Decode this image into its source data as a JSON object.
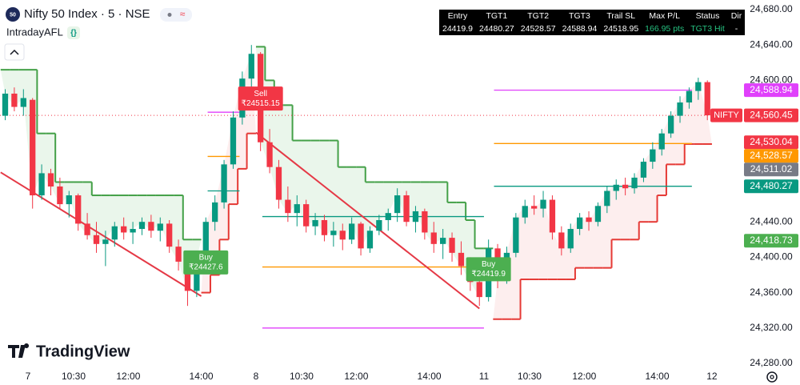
{
  "header": {
    "symbol_badge": "50",
    "title": "Nifty 50 Index · 5 · NSE",
    "indicator": "IntradayAFL"
  },
  "logo": "TradingView",
  "table": {
    "headers": [
      "Entry",
      "TGT1",
      "TGT2",
      "TGT3",
      "Trail SL",
      "Max P/L",
      "Status",
      "Dir"
    ],
    "row": [
      "24419.9",
      "24480.27",
      "24528.57",
      "24588.94",
      "24518.95",
      "166.95 pts",
      "TGT3 Hit",
      "-"
    ]
  },
  "chart_data": {
    "type": "candlestick",
    "up_color": "#089981",
    "down_color": "#f23645",
    "x": [
      -3,
      -2,
      -1,
      0,
      1,
      2,
      3,
      4,
      5,
      6,
      7,
      8,
      9,
      10,
      11,
      12,
      13,
      14,
      15,
      16,
      17,
      18,
      19,
      20,
      21,
      22,
      23,
      24,
      25,
      26,
      27,
      28,
      29,
      30,
      31,
      32,
      33,
      34,
      35,
      36,
      37,
      38,
      39,
      40,
      41,
      42,
      43,
      44,
      45,
      46,
      47,
      48,
      49,
      50,
      51,
      52,
      53,
      54,
      55,
      56,
      57,
      58,
      59,
      60,
      61,
      62,
      63,
      64,
      65,
      66,
      67,
      68,
      69,
      70,
      71,
      72,
      73,
      74
    ],
    "ohlc": [
      [
        24560,
        24590,
        24555,
        24585
      ],
      [
        24585,
        24592,
        24565,
        24570
      ],
      [
        24570,
        24590,
        24560,
        24580
      ],
      [
        24578,
        24580,
        24455,
        24470
      ],
      [
        24470,
        24505,
        24465,
        24495
      ],
      [
        24495,
        24500,
        24470,
        24480
      ],
      [
        24480,
        24490,
        24455,
        24460
      ],
      [
        24460,
        24475,
        24445,
        24470
      ],
      [
        24470,
        24472,
        24430,
        24438
      ],
      [
        24438,
        24450,
        24420,
        24425
      ],
      [
        24425,
        24440,
        24405,
        24415
      ],
      [
        24415,
        24430,
        24390,
        24420
      ],
      [
        24420,
        24440,
        24412,
        24435
      ],
      [
        24435,
        24445,
        24420,
        24428
      ],
      [
        24428,
        24440,
        24415,
        24432
      ],
      [
        24432,
        24445,
        24425,
        24440
      ],
      [
        24440,
        24448,
        24422,
        24430
      ],
      [
        24430,
        24445,
        24418,
        24438
      ],
      [
        24438,
        24442,
        24405,
        24412
      ],
      [
        24412,
        24420,
        24385,
        24395
      ],
      [
        24395,
        24400,
        24345,
        24362
      ],
      [
        24362,
        24405,
        24355,
        24398
      ],
      [
        24398,
        24445,
        24392,
        24440
      ],
      [
        24440,
        24470,
        24430,
        24462
      ],
      [
        24462,
        24510,
        24455,
        24505
      ],
      [
        24505,
        24565,
        24500,
        24558
      ],
      [
        24558,
        24610,
        24550,
        24602
      ],
      [
        24602,
        24640,
        24590,
        24630
      ],
      [
        24630,
        24632,
        24520,
        24530
      ],
      [
        24530,
        24545,
        24495,
        24502
      ],
      [
        24502,
        24510,
        24455,
        24465
      ],
      [
        24465,
        24480,
        24440,
        24450
      ],
      [
        24450,
        24470,
        24435,
        24460
      ],
      [
        24460,
        24465,
        24428,
        24435
      ],
      [
        24435,
        24450,
        24425,
        24442
      ],
      [
        24442,
        24448,
        24418,
        24425
      ],
      [
        24425,
        24440,
        24412,
        24430
      ],
      [
        24430,
        24438,
        24408,
        24420
      ],
      [
        24420,
        24445,
        24415,
        24438
      ],
      [
        24438,
        24440,
        24402,
        24410
      ],
      [
        24410,
        24435,
        24405,
        24430
      ],
      [
        24430,
        24448,
        24425,
        24442
      ],
      [
        24442,
        24455,
        24430,
        24450
      ],
      [
        24450,
        24478,
        24440,
        24470
      ],
      [
        24470,
        24475,
        24435,
        24440
      ],
      [
        24440,
        24458,
        24428,
        24452
      ],
      [
        24452,
        24455,
        24420,
        24428
      ],
      [
        24428,
        24440,
        24405,
        24415
      ],
      [
        24415,
        24432,
        24398,
        24422
      ],
      [
        24422,
        24428,
        24395,
        24405
      ],
      [
        24405,
        24418,
        24380,
        24390
      ],
      [
        24390,
        24400,
        24362,
        24372
      ],
      [
        24372,
        24385,
        24345,
        24355
      ],
      [
        24355,
        24420,
        24350,
        24410
      ],
      [
        24410,
        24415,
        24365,
        24375
      ],
      [
        24375,
        24412,
        24370,
        24405
      ],
      [
        24405,
        24450,
        24400,
        24445
      ],
      [
        24445,
        24465,
        24438,
        24458
      ],
      [
        24458,
        24470,
        24448,
        24455
      ],
      [
        24455,
        24475,
        24445,
        24465
      ],
      [
        24465,
        24470,
        24420,
        24428
      ],
      [
        24428,
        24435,
        24402,
        24410
      ],
      [
        24410,
        24438,
        24405,
        24432
      ],
      [
        24432,
        24450,
        24425,
        24445
      ],
      [
        24445,
        24452,
        24430,
        24440
      ],
      [
        24440,
        24462,
        24435,
        24458
      ],
      [
        24458,
        24480,
        24450,
        24475
      ],
      [
        24475,
        24488,
        24465,
        24482
      ],
      [
        24482,
        24490,
        24470,
        24478
      ],
      [
        24478,
        24495,
        24472,
        24490
      ],
      [
        24490,
        24512,
        24485,
        24508
      ],
      [
        24508,
        24530,
        24500,
        24522
      ],
      [
        24522,
        24545,
        24515,
        24540
      ],
      [
        24540,
        24565,
        24535,
        24560
      ],
      [
        24560,
        24582,
        24552,
        24575
      ],
      [
        24575,
        24592,
        24568,
        24588
      ],
      [
        24588,
        24603,
        24578,
        24598
      ],
      [
        24598,
        24600,
        24555,
        24560.45
      ]
    ],
    "xlim": [
      -3.07,
      77.2
    ],
    "xticks": [
      {
        "value": 0,
        "label": "7"
      },
      {
        "value": 5,
        "label": "10:30"
      },
      {
        "value": 11,
        "label": "12:00"
      },
      {
        "value": 19,
        "label": "14:00"
      },
      {
        "value": 25,
        "label": "8"
      },
      {
        "value": 30,
        "label": "10:30"
      },
      {
        "value": 36,
        "label": "12:00"
      },
      {
        "value": 44,
        "label": "14:00"
      },
      {
        "value": 50,
        "label": "11"
      },
      {
        "value": 55,
        "label": "10:30"
      },
      {
        "value": 61,
        "label": "12:00"
      },
      {
        "value": 69,
        "label": "14:00"
      },
      {
        "value": 75,
        "label": "12"
      }
    ],
    "ylim": [
      24280,
      24680
    ],
    "yticks": [
      {
        "value": 24680,
        "label": "24,680.00"
      },
      {
        "value": 24640,
        "label": "24,640.00"
      },
      {
        "value": 24600,
        "label": "24,600.00"
      },
      {
        "value": 24440,
        "label": "24,440.00"
      },
      {
        "value": 24400,
        "label": "24,400.00"
      },
      {
        "value": 24360,
        "label": "24,360.00"
      },
      {
        "value": 24320,
        "label": "24,320.00"
      },
      {
        "value": 24280,
        "label": "24,280.00"
      }
    ],
    "trail_upper": {
      "color": "#43a047",
      "fill": "#e8f5e9",
      "values": [
        24612,
        24612,
        24612,
        24612,
        24540,
        24540,
        24485,
        24485,
        24485,
        24485,
        24470,
        24470,
        24470,
        24470,
        24470,
        24470,
        24470,
        24470,
        24470,
        24470,
        24420,
        24420,
        null,
        null,
        null,
        null,
        null,
        null,
        24638,
        24600,
        24572,
        24572,
        24532,
        24532,
        24532,
        24532,
        24532,
        24502,
        24502,
        24502,
        24485,
        24485,
        24485,
        24485,
        24485,
        24485,
        24485,
        24485,
        24485,
        24462,
        24462,
        24442,
        24410,
        24410,
        null,
        null,
        null,
        null,
        null,
        null,
        null,
        null,
        null,
        null,
        null,
        null,
        null,
        null,
        null,
        null,
        null,
        null,
        null,
        null,
        null,
        null,
        null,
        null
      ]
    },
    "trail_lower": {
      "color": "#e53935",
      "fill": "#fdecec",
      "values": [
        null,
        null,
        null,
        null,
        null,
        null,
        null,
        null,
        null,
        null,
        null,
        null,
        null,
        null,
        null,
        null,
        null,
        null,
        null,
        null,
        null,
        null,
        24360,
        24380,
        24420,
        24460,
        24500,
        24540,
        null,
        null,
        null,
        null,
        null,
        null,
        null,
        null,
        null,
        null,
        null,
        null,
        null,
        null,
        null,
        null,
        null,
        null,
        null,
        null,
        null,
        null,
        null,
        null,
        null,
        null,
        24330,
        24330,
        24330,
        24375,
        24375,
        24375,
        24375,
        24375,
        24375,
        24388,
        24388,
        24388,
        24388,
        24420,
        24420,
        24420,
        24440,
        24440,
        24470,
        24505,
        24505,
        24528,
        24528,
        24528
      ]
    },
    "signal_lines": [
      {
        "color": "#e53946",
        "x": [
          -3,
          19
        ],
        "y": [
          24496,
          24356
        ]
      },
      {
        "color": "#e53946",
        "x": [
          25,
          49.5
        ],
        "y": [
          24541,
          24342
        ]
      }
    ],
    "target_colors": [
      "#089981",
      "#ff9800",
      "#e040fb"
    ],
    "targets": [
      {
        "x": [
          19.7,
          23.2
        ],
        "levels": [
          24475,
          24514,
          24564
        ]
      },
      {
        "x": [
          25.7,
          50
        ],
        "levels": [
          24446,
          24389,
          24320
        ]
      },
      {
        "x": [
          51.1,
          72.8
        ],
        "levels": [
          24480.27,
          24528.57,
          24588.94
        ]
      }
    ],
    "signals": [
      {
        "label": "Buy",
        "price_label": "₹24427.6",
        "value": 24427.6,
        "x": 19,
        "color": "#4caf50"
      },
      {
        "label": "Sell",
        "price_label": "₹24515.15",
        "value": 24515.15,
        "x": 25,
        "color": "#f23645"
      },
      {
        "label": "Buy",
        "price_label": "₹24419.9",
        "value": 24419.9,
        "x": 50,
        "color": "#4caf50"
      }
    ],
    "last_price": {
      "name": "NIFTY",
      "value": 24560.45,
      "label": "24,560.45",
      "color": "#f23645"
    },
    "price_labels": [
      {
        "value": 24588.94,
        "label": "24,588.94",
        "color": "#e040fb"
      },
      {
        "value": 24530.04,
        "label": "24,530.04",
        "color": "#f23645"
      },
      {
        "value": 24528.57,
        "label": "24,528.57",
        "color": "#ff9800"
      },
      {
        "value": 24511.02,
        "label": "24,511.02",
        "color": "#787b86"
      },
      {
        "value": 24480.27,
        "label": "24,480.27",
        "color": "#089981"
      },
      {
        "value": 24418.73,
        "label": "24,418.73",
        "color": "#4caf50"
      }
    ]
  }
}
